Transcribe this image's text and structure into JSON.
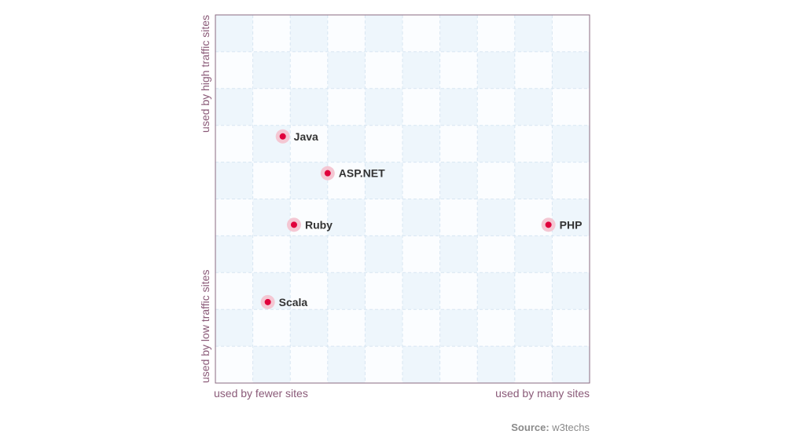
{
  "chart_data": {
    "type": "scatter",
    "title": "",
    "xlabel_low": "used by fewer sites",
    "xlabel_high": "used by many sites",
    "ylabel_low": "used by low traffic sites",
    "ylabel_high": "used by high traffic sites",
    "xlim": [
      0,
      10
    ],
    "ylim": [
      0,
      10
    ],
    "grid": true,
    "points": [
      {
        "label": "Java",
        "x": 1.8,
        "y": 6.7
      },
      {
        "label": "ASP.NET",
        "x": 3.0,
        "y": 5.7
      },
      {
        "label": "Ruby",
        "x": 2.1,
        "y": 4.3
      },
      {
        "label": "PHP",
        "x": 8.9,
        "y": 4.3
      },
      {
        "label": "Scala",
        "x": 1.4,
        "y": 2.2
      }
    ],
    "colors": {
      "point": "#e0003c",
      "halo": "#f4c7d3",
      "checker": "#eef6fc",
      "axis": "#8a5a78"
    }
  },
  "source": {
    "label": "Source:",
    "value": "w3techs"
  }
}
